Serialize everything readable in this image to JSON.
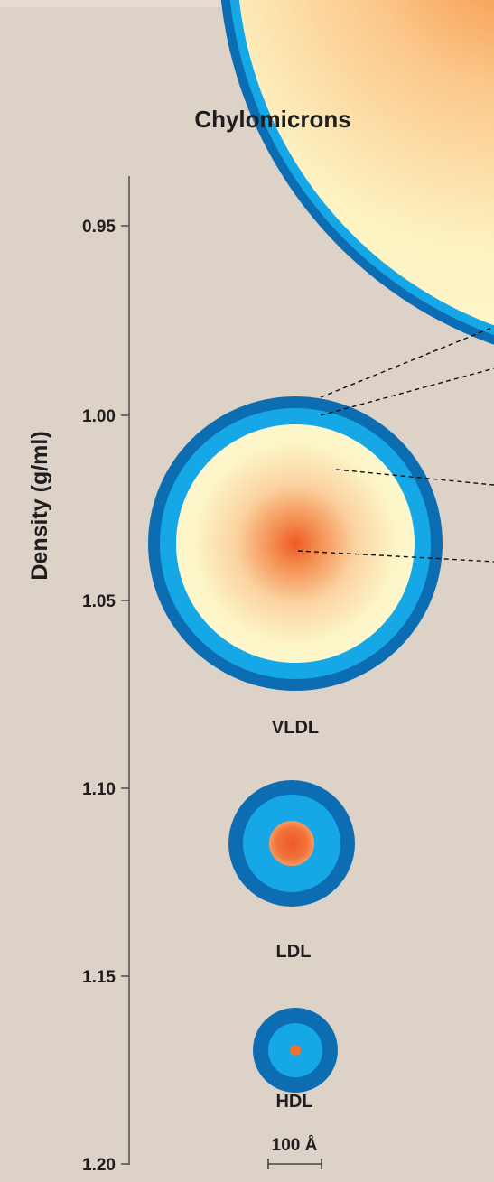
{
  "axis": {
    "label": "Density (g/ml)",
    "ticks": [
      "0.95",
      "1.00",
      "1.05",
      "1.10",
      "1.15",
      "1.20"
    ]
  },
  "particles": {
    "chylomicrons": "Chylomicrons",
    "vldl": "VLDL",
    "ldl": "LDL",
    "hdl": "HDL"
  },
  "scale_bar": {
    "label": "100 Å"
  },
  "colors": {
    "background": "#ddd2c7",
    "outer_shell": "#0d6db3",
    "inner_shell": "#16a8e6",
    "core_light": "#fdf6c6",
    "core_center": "#f16a2a"
  }
}
